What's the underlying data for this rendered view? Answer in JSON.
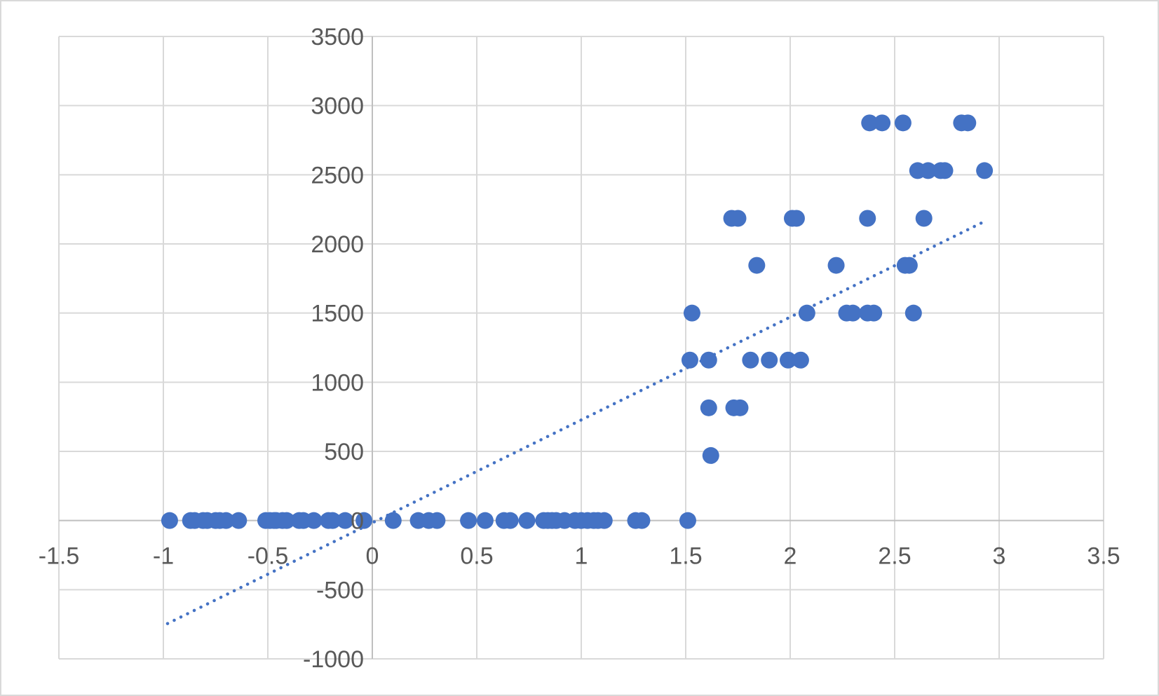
{
  "chart_data": {
    "type": "scatter",
    "title": "",
    "xlabel": "",
    "ylabel": "",
    "xlim": [
      -1.5,
      3.5
    ],
    "ylim": [
      -1000,
      3500
    ],
    "x_ticks": [
      "-1.5",
      "-1",
      "-0.5",
      "0",
      "0.5",
      "1",
      "1.5",
      "2",
      "2.5",
      "3",
      "3.5"
    ],
    "y_ticks": [
      "-1000",
      "-500",
      "0",
      "500",
      "1000",
      "1500",
      "2000",
      "2500",
      "3000",
      "3500"
    ],
    "grid": true,
    "legend": "none",
    "marker_color": "#4472C4",
    "series": [
      {
        "points": [
          [
            -0.97,
            0
          ],
          [
            -0.87,
            0
          ],
          [
            -0.85,
            0
          ],
          [
            -0.81,
            0
          ],
          [
            -0.79,
            0
          ],
          [
            -0.75,
            0
          ],
          [
            -0.73,
            0
          ],
          [
            -0.7,
            0
          ],
          [
            -0.64,
            0
          ],
          [
            -0.51,
            0
          ],
          [
            -0.49,
            0
          ],
          [
            -0.47,
            0
          ],
          [
            -0.46,
            0
          ],
          [
            -0.43,
            0
          ],
          [
            -0.41,
            0
          ],
          [
            -0.35,
            0
          ],
          [
            -0.33,
            0
          ],
          [
            -0.28,
            0
          ],
          [
            -0.21,
            0
          ],
          [
            -0.19,
            0
          ],
          [
            -0.13,
            0
          ],
          [
            -0.04,
            0
          ],
          [
            0.1,
            0
          ],
          [
            0.22,
            0
          ],
          [
            0.27,
            0
          ],
          [
            0.31,
            0
          ],
          [
            0.46,
            0
          ],
          [
            0.54,
            0
          ],
          [
            0.63,
            0
          ],
          [
            0.66,
            0
          ],
          [
            0.74,
            0
          ],
          [
            0.82,
            0
          ],
          [
            0.84,
            0
          ],
          [
            0.86,
            0
          ],
          [
            0.88,
            0
          ],
          [
            0.92,
            0
          ],
          [
            0.97,
            0
          ],
          [
            1.0,
            0
          ],
          [
            1.03,
            0
          ],
          [
            1.06,
            0
          ],
          [
            1.08,
            0
          ],
          [
            1.11,
            0
          ],
          [
            1.26,
            0
          ],
          [
            1.29,
            0
          ],
          [
            1.51,
            0
          ],
          [
            1.62,
            470
          ],
          [
            1.61,
            815
          ],
          [
            1.73,
            815
          ],
          [
            1.76,
            815
          ],
          [
            1.52,
            1160
          ],
          [
            1.61,
            1160
          ],
          [
            1.81,
            1160
          ],
          [
            1.9,
            1160
          ],
          [
            1.99,
            1160
          ],
          [
            2.05,
            1160
          ],
          [
            1.53,
            1500
          ],
          [
            2.08,
            1500
          ],
          [
            2.27,
            1500
          ],
          [
            2.3,
            1500
          ],
          [
            2.37,
            1500
          ],
          [
            2.4,
            1500
          ],
          [
            2.59,
            1500
          ],
          [
            1.84,
            1845
          ],
          [
            2.22,
            1845
          ],
          [
            2.55,
            1845
          ],
          [
            2.57,
            1845
          ],
          [
            1.72,
            2185
          ],
          [
            1.75,
            2185
          ],
          [
            2.01,
            2185
          ],
          [
            2.03,
            2185
          ],
          [
            2.37,
            2185
          ],
          [
            2.64,
            2185
          ],
          [
            2.61,
            2530
          ],
          [
            2.66,
            2530
          ],
          [
            2.72,
            2530
          ],
          [
            2.74,
            2530
          ],
          [
            2.93,
            2530
          ],
          [
            2.38,
            2875
          ],
          [
            2.44,
            2875
          ],
          [
            2.54,
            2875
          ],
          [
            2.82,
            2875
          ],
          [
            2.85,
            2875
          ]
        ]
      }
    ],
    "trendline": {
      "style": "dotted",
      "type": "linear",
      "x": [
        -0.98,
        2.92
      ],
      "y": [
        -745,
        2155
      ]
    }
  }
}
